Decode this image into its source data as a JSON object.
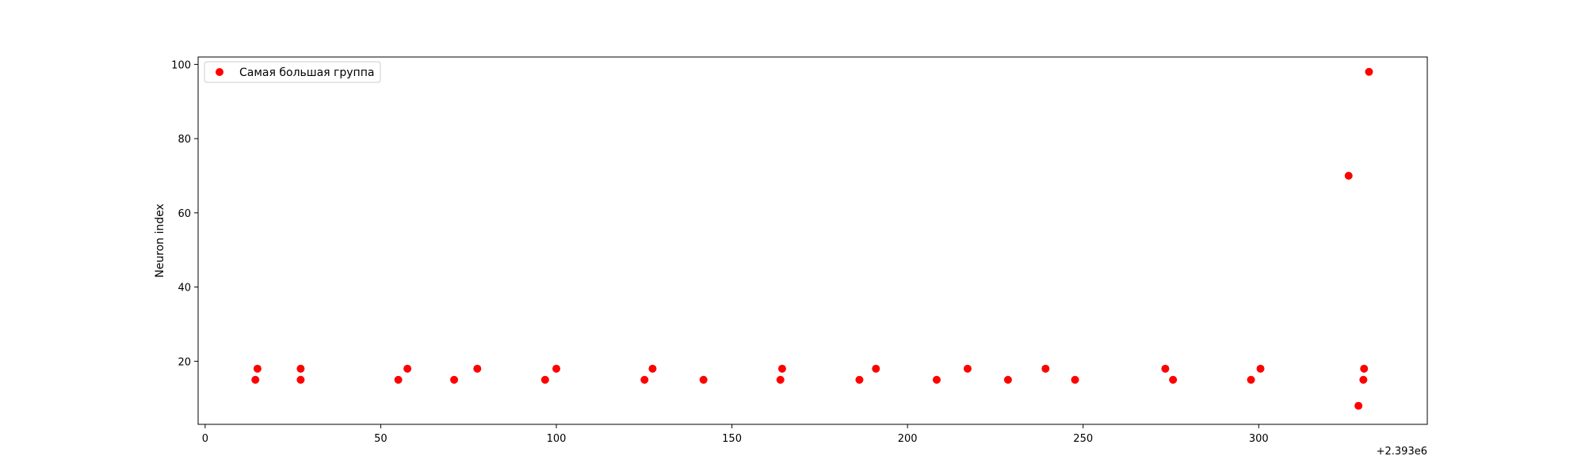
{
  "chart_data": {
    "type": "scatter",
    "title": "",
    "xlabel": "",
    "ylabel": "Neuron index",
    "x_offset_label": "+2.393e6",
    "xlim": [
      -2,
      348
    ],
    "ylim": [
      3,
      102
    ],
    "xticks": [
      0,
      50,
      100,
      150,
      200,
      250,
      300
    ],
    "yticks": [
      20,
      40,
      60,
      80,
      100
    ],
    "grid": false,
    "legend_position": "top-left",
    "series": [
      {
        "name": "Самая большая группа",
        "color": "#ff0000",
        "marker": "circle",
        "x": [
          14.3,
          14.9,
          27.2,
          27.2,
          55.0,
          57.6,
          70.9,
          77.5,
          96.8,
          100.0,
          125.1,
          127.4,
          141.9,
          163.8,
          164.3,
          186.3,
          191.0,
          208.3,
          217.1,
          228.6,
          239.3,
          247.7,
          273.4,
          275.6,
          297.8,
          300.5,
          325.6,
          328.4,
          329.8,
          330.0,
          331.4
        ],
        "y": [
          15,
          18,
          15,
          18,
          15,
          18,
          15,
          18,
          15,
          18,
          15,
          18,
          15,
          15,
          18,
          15,
          18,
          15,
          18,
          15,
          18,
          15,
          18,
          15,
          15,
          18,
          70,
          8,
          15,
          18,
          98
        ]
      }
    ]
  }
}
